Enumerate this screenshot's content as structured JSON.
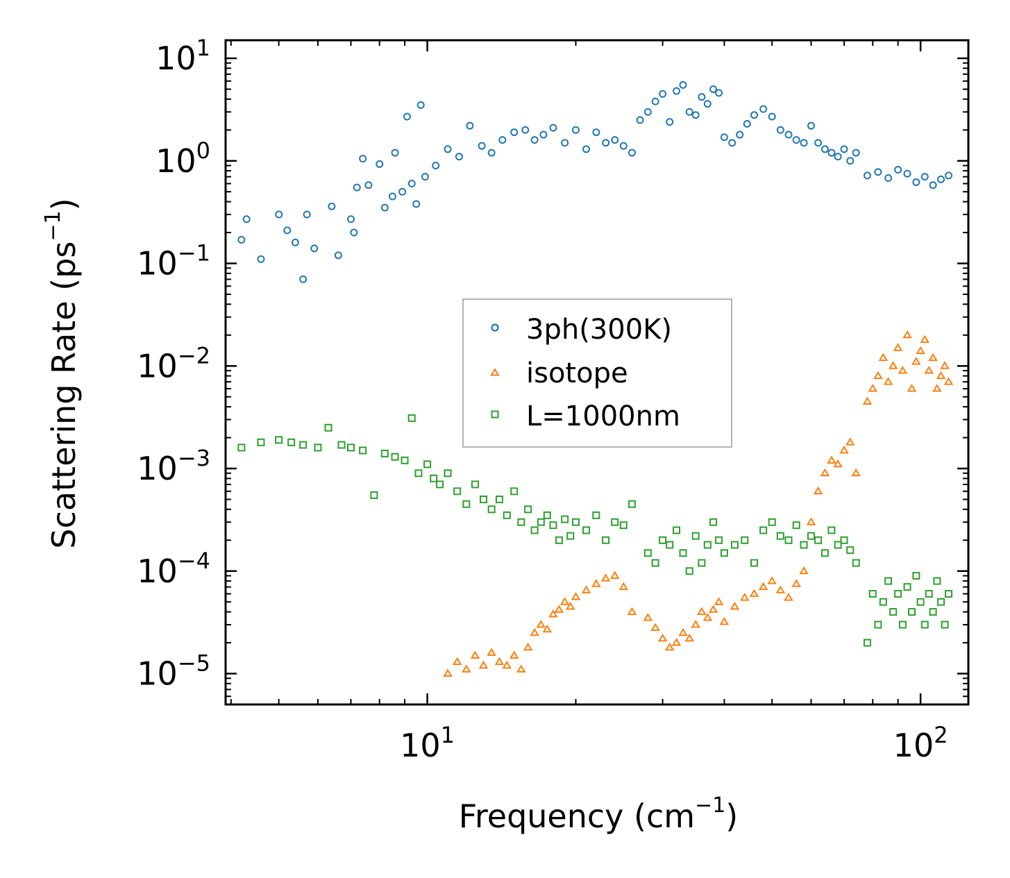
{
  "chart_data": {
    "type": "scatter",
    "title": "",
    "xlabel": "Frequency (cm$^{-1}$)",
    "ylabel": "Scattering Rate (ps$^{-1}$)",
    "xlabel_parts": {
      "main": "Frequency (cm",
      "sup": "−1",
      "close": ")"
    },
    "ylabel_parts": {
      "main": "Scattering Rate (ps",
      "sup": "−1",
      "close": ")"
    },
    "xscale": "log",
    "yscale": "log",
    "xlim": [
      3.9,
      125
    ],
    "ylim": [
      5e-06,
      15
    ],
    "grid": false,
    "legend_placement": "center",
    "x_ticks": [
      {
        "value": 10,
        "base": "10",
        "exp": "1"
      },
      {
        "value": 100,
        "base": "10",
        "exp": "2"
      }
    ],
    "y_ticks": [
      {
        "value": 10,
        "base": "10",
        "exp": "1"
      },
      {
        "value": 1,
        "base": "10",
        "exp": "0"
      },
      {
        "value": 0.1,
        "base": "10",
        "exp": "−1"
      },
      {
        "value": 0.01,
        "base": "10",
        "exp": "−2"
      },
      {
        "value": 0.001,
        "base": "10",
        "exp": "−3"
      },
      {
        "value": 0.0001,
        "base": "10",
        "exp": "−4"
      },
      {
        "value": 1e-05,
        "base": "10",
        "exp": "−5"
      }
    ],
    "series": [
      {
        "name": "3ph(300K)",
        "marker": "circle",
        "color": "#1f77b4",
        "x": [
          4.2,
          4.3,
          4.6,
          5.0,
          5.2,
          5.4,
          5.6,
          5.7,
          5.9,
          6.4,
          6.6,
          7.0,
          7.1,
          7.2,
          7.4,
          7.6,
          8.0,
          8.2,
          8.5,
          8.6,
          8.9,
          9.1,
          9.3,
          9.5,
          9.7,
          9.9,
          10.4,
          11.0,
          11.6,
          12.2,
          12.9,
          13.5,
          14.2,
          15.0,
          15.8,
          16.5,
          17.2,
          18.0,
          19.0,
          20.0,
          21.0,
          22.0,
          23.0,
          24.0,
          25.0,
          26.0,
          27.0,
          28.0,
          29.0,
          30.0,
          31.0,
          32.0,
          33.0,
          34.0,
          35.0,
          36.0,
          37.0,
          38.0,
          39.0,
          40.0,
          41.5,
          43.0,
          44.5,
          46.0,
          48.0,
          50.0,
          52.0,
          54.0,
          56.0,
          58.0,
          60.0,
          62.0,
          64.0,
          66.0,
          68.0,
          70.0,
          72.0,
          74.0,
          78.0,
          82.0,
          86.0,
          90.0,
          94.0,
          98.0,
          102.0,
          106.0,
          110.0,
          114.0
        ],
        "y": [
          0.17,
          0.27,
          0.11,
          0.3,
          0.21,
          0.16,
          0.07,
          0.3,
          0.14,
          0.36,
          0.12,
          0.27,
          0.2,
          0.55,
          1.05,
          0.58,
          0.93,
          0.35,
          0.45,
          1.2,
          0.5,
          2.7,
          0.6,
          0.38,
          3.5,
          0.7,
          0.9,
          1.3,
          1.1,
          2.2,
          1.4,
          1.2,
          1.6,
          1.9,
          2.0,
          1.6,
          1.8,
          2.1,
          1.5,
          2.0,
          1.3,
          1.9,
          1.5,
          1.6,
          1.4,
          1.2,
          2.5,
          3.0,
          3.8,
          4.5,
          2.4,
          4.8,
          5.5,
          3.0,
          2.8,
          4.2,
          3.6,
          5.0,
          4.6,
          1.7,
          1.5,
          1.8,
          2.3,
          2.8,
          3.2,
          2.7,
          2.0,
          1.8,
          1.6,
          1.5,
          2.2,
          1.5,
          1.3,
          1.2,
          1.1,
          1.3,
          1.0,
          1.2,
          0.72,
          0.78,
          0.68,
          0.82,
          0.75,
          0.62,
          0.7,
          0.58,
          0.66,
          0.72
        ]
      },
      {
        "name": "isotope",
        "marker": "triangle",
        "color": "#ff7f0e",
        "x": [
          11.0,
          11.5,
          12.0,
          12.5,
          13.0,
          13.5,
          14.0,
          14.5,
          15.0,
          15.5,
          16.0,
          16.5,
          17.0,
          17.5,
          18.0,
          18.5,
          19.0,
          19.5,
          20.0,
          21.0,
          22.0,
          23.0,
          24.0,
          25.0,
          26.0,
          28.0,
          29.0,
          30.0,
          31.0,
          32.0,
          33.0,
          34.0,
          35.0,
          36.0,
          37.0,
          38.0,
          39.0,
          40.0,
          42.0,
          44.0,
          46.0,
          48.0,
          50.0,
          52.0,
          54.0,
          56.0,
          58.0,
          60.0,
          62.0,
          64.0,
          66.0,
          68.0,
          70.0,
          72.0,
          74.0,
          78.0,
          80.0,
          82.0,
          84.0,
          86.0,
          88.0,
          90.0,
          92.0,
          94.0,
          96.0,
          98.0,
          100.0,
          102.0,
          104.0,
          106.0,
          108.0,
          110.0,
          112.0,
          114.0
        ],
        "y": [
          1e-05,
          1.3e-05,
          1.1e-05,
          1.5e-05,
          1.2e-05,
          1.6e-05,
          1.3e-05,
          1.2e-05,
          1.5e-05,
          1.1e-05,
          1.8e-05,
          2.5e-05,
          3e-05,
          2.7e-05,
          3.8e-05,
          4.2e-05,
          5e-05,
          4.5e-05,
          5.6e-05,
          6.5e-05,
          7.5e-05,
          8.5e-05,
          9e-05,
          7e-05,
          4e-05,
          3.5e-05,
          2.8e-05,
          2.2e-05,
          1.8e-05,
          2e-05,
          2.5e-05,
          2.2e-05,
          3e-05,
          4e-05,
          3.5e-05,
          4.2e-05,
          5e-05,
          3.2e-05,
          4.5e-05,
          5.5e-05,
          6e-05,
          7e-05,
          8e-05,
          6.5e-05,
          5.5e-05,
          7.5e-05,
          0.0001,
          0.0003,
          0.0006,
          0.0009,
          0.0012,
          0.0011,
          0.0015,
          0.0018,
          0.0009,
          0.0045,
          0.006,
          0.008,
          0.012,
          0.007,
          0.01,
          0.015,
          0.009,
          0.02,
          0.006,
          0.011,
          0.014,
          0.018,
          0.009,
          0.012,
          0.006,
          0.008,
          0.01,
          0.007
        ]
      },
      {
        "name": "L=1000nm",
        "marker": "square",
        "color": "#2ca02c",
        "x": [
          4.2,
          4.6,
          5.0,
          5.3,
          5.6,
          6.0,
          6.3,
          6.7,
          7.0,
          7.4,
          7.8,
          8.2,
          8.6,
          9.0,
          9.3,
          9.6,
          10.0,
          10.3,
          10.6,
          11.0,
          11.5,
          12.0,
          12.5,
          13.0,
          13.5,
          14.0,
          14.5,
          15.0,
          15.5,
          16.0,
          16.5,
          17.0,
          17.5,
          18.0,
          18.5,
          19.0,
          19.5,
          20.0,
          21.0,
          22.0,
          23.0,
          24.0,
          25.0,
          26.0,
          28.0,
          29.0,
          30.0,
          31.0,
          32.0,
          33.0,
          34.0,
          35.0,
          36.0,
          37.0,
          38.0,
          39.0,
          40.0,
          42.0,
          44.0,
          46.0,
          48.0,
          50.0,
          52.0,
          54.0,
          56.0,
          58.0,
          60.0,
          62.0,
          64.0,
          66.0,
          68.0,
          70.0,
          72.0,
          74.0,
          78.0,
          80.0,
          82.0,
          84.0,
          86.0,
          88.0,
          90.0,
          92.0,
          94.0,
          96.0,
          98.0,
          100.0,
          102.0,
          104.0,
          106.0,
          108.0,
          110.0,
          112.0,
          114.0
        ],
        "y": [
          0.0016,
          0.0018,
          0.0019,
          0.0018,
          0.0017,
          0.0016,
          0.0025,
          0.0017,
          0.0016,
          0.0015,
          0.00055,
          0.0014,
          0.0013,
          0.0012,
          0.0031,
          0.0009,
          0.0011,
          0.0008,
          0.0007,
          0.0009,
          0.0006,
          0.00045,
          0.0007,
          0.0005,
          0.0004,
          0.0005,
          0.00035,
          0.0006,
          0.0003,
          0.0004,
          0.00025,
          0.0003,
          0.00035,
          0.00028,
          0.0002,
          0.00032,
          0.00022,
          0.0003,
          0.00025,
          0.00035,
          0.0002,
          0.0003,
          0.00028,
          0.00045,
          0.00015,
          0.00012,
          0.0002,
          0.00018,
          0.00025,
          0.00015,
          0.0001,
          0.00022,
          0.00012,
          0.00018,
          0.0003,
          0.0002,
          0.00015,
          0.00018,
          0.0002,
          0.00012,
          0.00025,
          0.0003,
          0.00022,
          0.0002,
          0.00028,
          0.00018,
          0.00022,
          0.0002,
          0.00015,
          0.00025,
          0.00018,
          0.0002,
          0.00016,
          0.00012,
          2e-05,
          6e-05,
          3e-05,
          5e-05,
          8e-05,
          4e-05,
          6e-05,
          3e-05,
          7e-05,
          4e-05,
          9e-05,
          5e-05,
          3e-05,
          6e-05,
          4e-05,
          8e-05,
          5e-05,
          3e-05,
          6e-05
        ]
      }
    ]
  }
}
